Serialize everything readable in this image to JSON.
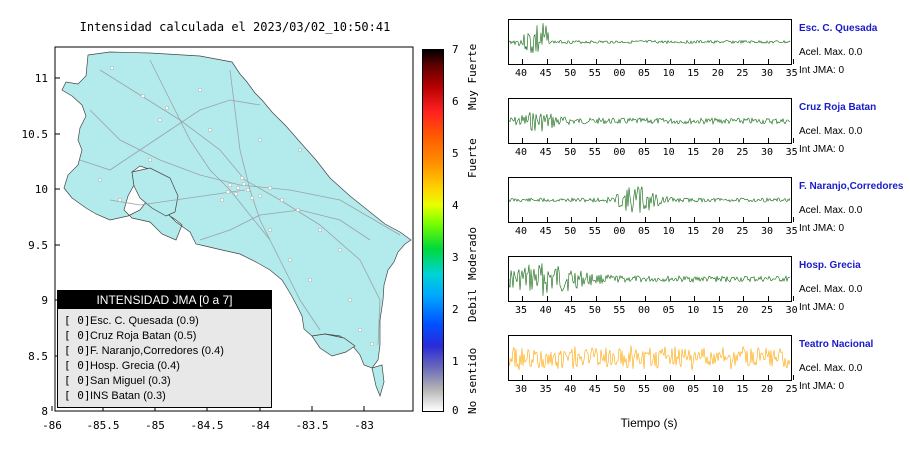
{
  "map": {
    "title": "Intensidad calculada el 2023/03/02_10:50:41",
    "y_ticks": [
      "11",
      "10.5",
      "10",
      "9.5",
      "9",
      "8.5",
      "8"
    ],
    "x_ticks": [
      "-86",
      "-85.5",
      "-85",
      "-84.5",
      "-84",
      "-83.5",
      "-83"
    ],
    "land_color": "#b3eaec",
    "sea_color": "#ffffff"
  },
  "legend": {
    "title": "INTENSIDAD JMA [0 a 7]",
    "items": [
      {
        "code": "[ 0]",
        "label": "Esc. C. Quesada (0.9)"
      },
      {
        "code": "[ 0]",
        "label": "Cruz Roja Batan (0.5)"
      },
      {
        "code": "[ 0]",
        "label": "F. Naranjo,Corredores (0.4)"
      },
      {
        "code": "[ 0]",
        "label": "Hosp. Grecia (0.4)"
      },
      {
        "code": "[ 0]",
        "label": "San Miguel (0.3)"
      },
      {
        "code": "[ 0]",
        "label": "INS Batan (0.3)"
      }
    ]
  },
  "scale": {
    "numbers": [
      "7",
      "6",
      "5",
      "4",
      "3",
      "2",
      "1",
      "0"
    ],
    "words": [
      "Muy Fuerte",
      "Fuerte",
      "Moderado",
      "Debil",
      "No sentido"
    ]
  },
  "stations": [
    {
      "name": "Esc. C. Quesada",
      "accel": "Acel. Max. 0.0",
      "jma": "Int JMA: 0",
      "color": "#0a640a",
      "ticks": [
        "40",
        "45",
        "50",
        "55",
        "00",
        "05",
        "10",
        "15",
        "20",
        "25",
        "30",
        "35"
      ]
    },
    {
      "name": "Cruz Roja Batan",
      "accel": "Acel. Max. 0.0",
      "jma": "Int JMA: 0",
      "color": "#0a640a",
      "ticks": [
        "40",
        "45",
        "50",
        "55",
        "00",
        "05",
        "10",
        "15",
        "20",
        "25",
        "30",
        "35"
      ]
    },
    {
      "name": "F. Naranjo,Corredores",
      "accel": "Acel. Max. 0.0",
      "jma": "Int JMA: 0",
      "color": "#0a640a",
      "ticks": [
        "40",
        "45",
        "50",
        "55",
        "00",
        "05",
        "10",
        "15",
        "20",
        "25",
        "30",
        "35"
      ]
    },
    {
      "name": "Hosp. Grecia",
      "accel": "Acel. Max. 0.0",
      "jma": "Int JMA: 0",
      "color": "#0a640a",
      "ticks": [
        "35",
        "40",
        "45",
        "50",
        "55",
        "00",
        "05",
        "10",
        "15",
        "20",
        "25",
        "30"
      ]
    },
    {
      "name": "Teatro Nacional",
      "accel": "Acel. Max. 0.0",
      "jma": "Int JMA: 0",
      "color": "#ffa500",
      "ticks": [
        "30",
        "35",
        "40",
        "45",
        "50",
        "55",
        "00",
        "05",
        "10",
        "15",
        "20",
        "25"
      ]
    }
  ],
  "time_axis_label": "Tiempo (s)"
}
